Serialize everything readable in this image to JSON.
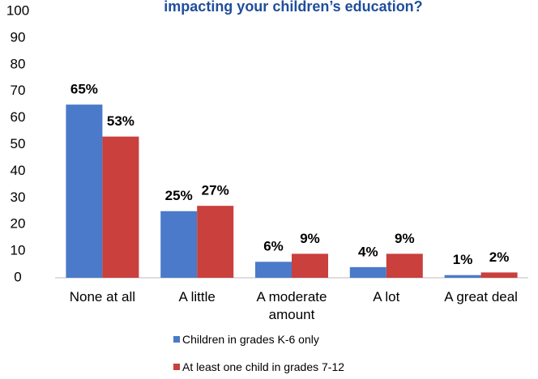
{
  "chart_data": {
    "type": "bar",
    "title": "impacting your children’s education?",
    "categories": [
      "None at all",
      "A little",
      "A moderate amount",
      "A lot",
      "A great deal"
    ],
    "series": [
      {
        "name": "Children in grades K-6 only",
        "color": "#4a7ac9",
        "values": [
          65,
          25,
          6,
          4,
          1
        ],
        "value_labels": [
          "65%",
          "25%",
          "6%",
          "4%",
          "1%"
        ]
      },
      {
        "name": "At least one child in grades 7-12",
        "color": "#c9403d",
        "values": [
          53,
          27,
          9,
          9,
          2
        ],
        "value_labels": [
          "53%",
          "27%",
          "9%",
          "9%",
          "2%"
        ]
      }
    ],
    "ylim": [
      0,
      100
    ],
    "yticks": [
      0,
      10,
      20,
      30,
      40,
      50,
      60,
      70,
      80,
      90,
      100
    ],
    "grid": false
  }
}
